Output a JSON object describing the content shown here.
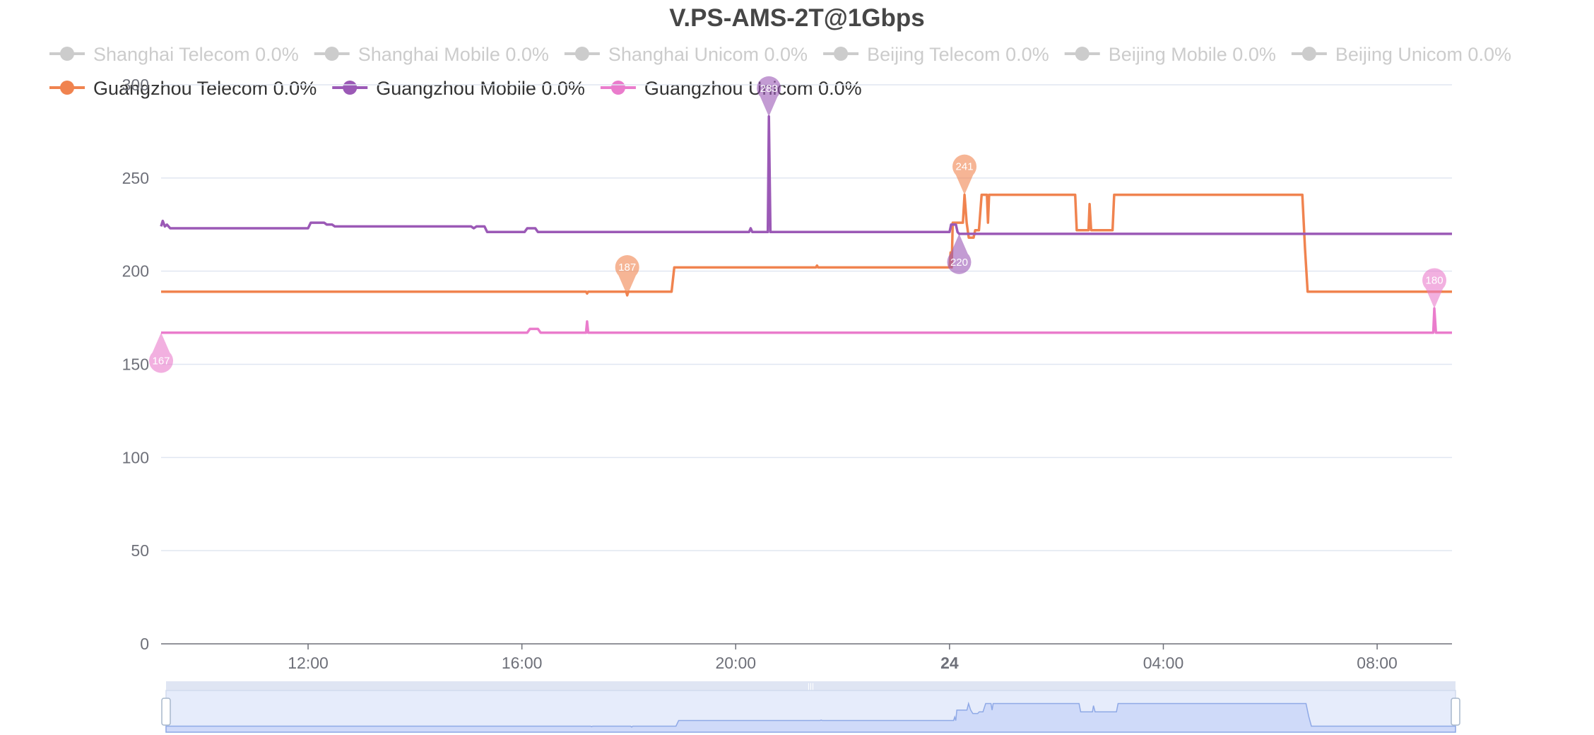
{
  "chart_data": {
    "type": "line",
    "title": "V.PS-AMS-2T@1Gbps",
    "xlabel": "",
    "ylabel": "",
    "ylim": [
      0,
      300
    ],
    "yticks": [
      0,
      50,
      100,
      150,
      200,
      250,
      300
    ],
    "x_range_hours": [
      9.25,
      33.4
    ],
    "xticks": [
      {
        "label": "12:00",
        "hour": 12,
        "bold": false
      },
      {
        "label": "16:00",
        "hour": 16,
        "bold": false
      },
      {
        "label": "20:00",
        "hour": 20,
        "bold": false
      },
      {
        "label": "24",
        "hour": 24,
        "bold": true
      },
      {
        "label": "04:00",
        "hour": 28,
        "bold": false
      },
      {
        "label": "08:00",
        "hour": 32,
        "bold": false
      }
    ],
    "legend": [
      {
        "name": "Shanghai Telecom 0.0%",
        "color": "#cccccc",
        "active": false
      },
      {
        "name": "Shanghai Mobile 0.0%",
        "color": "#cccccc",
        "active": false
      },
      {
        "name": "Shanghai Unicom 0.0%",
        "color": "#cccccc",
        "active": false
      },
      {
        "name": "Beijing Telecom 0.0%",
        "color": "#cccccc",
        "active": false
      },
      {
        "name": "Beijing Mobile 0.0%",
        "color": "#cccccc",
        "active": false
      },
      {
        "name": "Beijing Unicom 0.0%",
        "color": "#cccccc",
        "active": false
      },
      {
        "name": "Guangzhou Telecom 0.0%",
        "color": "#f0834f",
        "active": true
      },
      {
        "name": "Guangzhou Mobile 0.0%",
        "color": "#9b59b6",
        "active": true
      },
      {
        "name": "Guangzhou Unicom 0.0%",
        "color": "#ea7ccc",
        "active": true
      }
    ],
    "series": [
      {
        "name": "Guangzhou Telecom",
        "color": "#f0834f",
        "points": [
          [
            9.25,
            189
          ],
          [
            17.2,
            189
          ],
          [
            17.22,
            188
          ],
          [
            17.24,
            189
          ],
          [
            17.95,
            189
          ],
          [
            17.97,
            187
          ],
          [
            17.99,
            189
          ],
          [
            18.8,
            189
          ],
          [
            18.85,
            202
          ],
          [
            21.5,
            202
          ],
          [
            21.52,
            203
          ],
          [
            21.54,
            202
          ],
          [
            24,
            202
          ],
          [
            24.02,
            210
          ],
          [
            24.04,
            202
          ],
          [
            24.06,
            226
          ],
          [
            24.25,
            226
          ],
          [
            24.28,
            241
          ],
          [
            24.32,
            226
          ],
          [
            24.36,
            218
          ],
          [
            24.45,
            218
          ],
          [
            24.48,
            222
          ],
          [
            24.55,
            222
          ],
          [
            24.6,
            241
          ],
          [
            24.7,
            241
          ],
          [
            24.72,
            226
          ],
          [
            24.74,
            241
          ],
          [
            26.35,
            241
          ],
          [
            26.38,
            222
          ],
          [
            26.6,
            222
          ],
          [
            26.62,
            236
          ],
          [
            26.65,
            222
          ],
          [
            27.05,
            222
          ],
          [
            27.08,
            241
          ],
          [
            30.6,
            241
          ],
          [
            30.65,
            212
          ],
          [
            30.7,
            189
          ],
          [
            33.4,
            189
          ]
        ]
      },
      {
        "name": "Guangzhou Mobile",
        "color": "#9b59b6",
        "points": [
          [
            9.25,
            224
          ],
          [
            9.28,
            227
          ],
          [
            9.32,
            224
          ],
          [
            9.36,
            225
          ],
          [
            9.42,
            223
          ],
          [
            12,
            223
          ],
          [
            12.05,
            226
          ],
          [
            12.3,
            226
          ],
          [
            12.35,
            225
          ],
          [
            12.45,
            225
          ],
          [
            12.5,
            224
          ],
          [
            15.05,
            224
          ],
          [
            15.1,
            223
          ],
          [
            15.15,
            224
          ],
          [
            15.3,
            224
          ],
          [
            15.35,
            221
          ],
          [
            16.05,
            221
          ],
          [
            16.1,
            223
          ],
          [
            16.25,
            223
          ],
          [
            16.3,
            221
          ],
          [
            20.25,
            221
          ],
          [
            20.28,
            223
          ],
          [
            20.31,
            221
          ],
          [
            20.6,
            221
          ],
          [
            20.62,
            283
          ],
          [
            20.65,
            221
          ],
          [
            24,
            221
          ],
          [
            24.03,
            225
          ],
          [
            24.12,
            225
          ],
          [
            24.15,
            221
          ],
          [
            24.18,
            220
          ],
          [
            30,
            220
          ],
          [
            33.4,
            220
          ]
        ]
      },
      {
        "name": "Guangzhou Unicom",
        "color": "#ea7ccc",
        "points": [
          [
            9.25,
            167
          ],
          [
            16.1,
            167
          ],
          [
            16.15,
            169
          ],
          [
            16.3,
            169
          ],
          [
            16.35,
            167
          ],
          [
            17.2,
            167
          ],
          [
            17.22,
            173
          ],
          [
            17.24,
            167
          ],
          [
            33.05,
            167
          ],
          [
            33.07,
            180
          ],
          [
            33.1,
            167
          ],
          [
            33.4,
            167
          ]
        ]
      }
    ],
    "markers": [
      {
        "series": "Guangzhou Mobile",
        "label": "283",
        "hour": 20.62,
        "value": 283,
        "color": "#9b59b6",
        "dir": "up"
      },
      {
        "series": "Guangzhou Telecom",
        "label": "241",
        "hour": 24.28,
        "value": 241,
        "color": "#f0834f",
        "dir": "up"
      },
      {
        "series": "Guangzhou Mobile",
        "label": "220",
        "hour": 24.18,
        "value": 220,
        "color": "#9b59b6",
        "dir": "down"
      },
      {
        "series": "Guangzhou Telecom",
        "label": "187",
        "hour": 17.97,
        "value": 187,
        "color": "#f0834f",
        "dir": "up"
      },
      {
        "series": "Guangzhou Unicom",
        "label": "167",
        "hour": 9.25,
        "value": 167,
        "color": "#ea7ccc",
        "dir": "down"
      },
      {
        "series": "Guangzhou Unicom",
        "label": "180",
        "hour": 33.07,
        "value": 180,
        "color": "#ea7ccc",
        "dir": "up"
      }
    ],
    "grid": true,
    "legend_position": "top",
    "data_zoom": true
  }
}
